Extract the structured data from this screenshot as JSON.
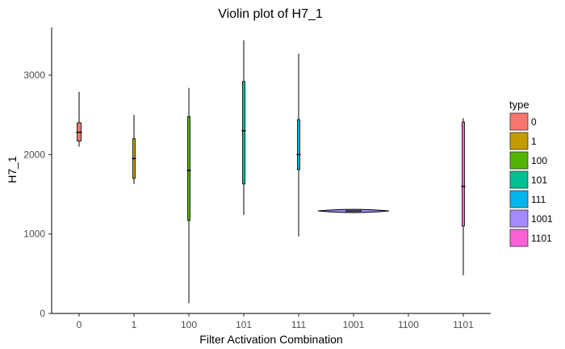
{
  "chart_data": {
    "type": "violin",
    "title": "Violin plot of H7_1",
    "xlabel": "Filter Activation Combination",
    "ylabel": "H7_1",
    "ylim": [
      0,
      3600
    ],
    "yticks": [
      0,
      1000,
      2000,
      3000
    ],
    "categories": [
      "0",
      "1",
      "100",
      "101",
      "111",
      "1001",
      "1100",
      "1101"
    ],
    "legend": {
      "title": "type",
      "placement": "right",
      "entries": [
        "0",
        "1",
        "100",
        "101",
        "111",
        "1001",
        "1101"
      ]
    },
    "series": [
      {
        "name": "0",
        "color": "#F8766D",
        "min": 2100,
        "q1": 2170,
        "median": 2280,
        "q3": 2400,
        "max": 2790
      },
      {
        "name": "1",
        "color": "#C49A00",
        "min": 1630,
        "q1": 1700,
        "median": 1950,
        "q3": 2200,
        "max": 2500
      },
      {
        "name": "100",
        "color": "#53B400",
        "min": 130,
        "q1": 1170,
        "median": 1800,
        "q3": 2480,
        "max": 2840
      },
      {
        "name": "101",
        "color": "#00C094",
        "min": 1240,
        "q1": 1630,
        "median": 2300,
        "q3": 2920,
        "max": 3440
      },
      {
        "name": "111",
        "color": "#00B6EB",
        "min": 970,
        "q1": 1810,
        "median": 2000,
        "q3": 2440,
        "max": 3270
      },
      {
        "name": "1001",
        "color": "#A58AFF",
        "min": 1270,
        "q1": 1280,
        "median": 1290,
        "q3": 1300,
        "max": 1310
      },
      {
        "name": "1101",
        "color": "#FB61D7",
        "min": 480,
        "q1": 1100,
        "median": 1600,
        "q3": 2410,
        "max": 2460
      }
    ]
  }
}
